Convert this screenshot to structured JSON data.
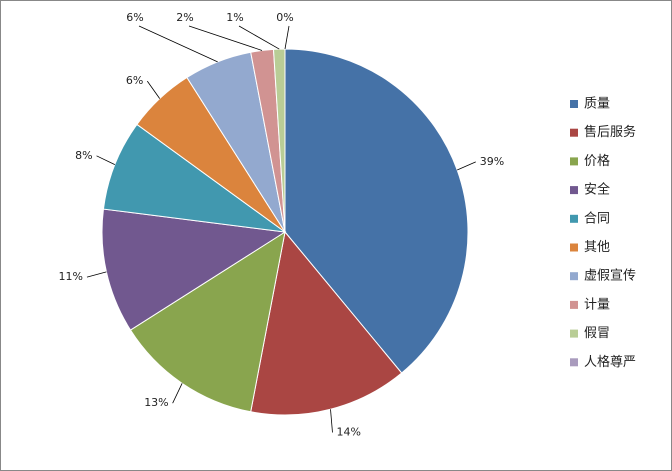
{
  "chart_data": {
    "type": "pie",
    "categories": [
      "质量",
      "售后服务",
      "价格",
      "安全",
      "合同",
      "其他",
      "虚假宣传",
      "计量",
      "假冒",
      "人格尊严"
    ],
    "values": [
      39,
      14,
      13,
      11,
      8,
      6,
      6,
      2,
      1,
      0
    ],
    "value_labels": [
      "39%",
      "14%",
      "13%",
      "11%",
      "8%",
      "6%",
      "6%",
      "2%",
      "1%",
      "0%"
    ],
    "colors": [
      "#4572a7",
      "#aa4643",
      "#89a54e",
      "#71588f",
      "#4198af",
      "#db843d",
      "#93a9cf",
      "#d19392",
      "#b9cd96",
      "#a99bbd"
    ],
    "legend": "right"
  }
}
